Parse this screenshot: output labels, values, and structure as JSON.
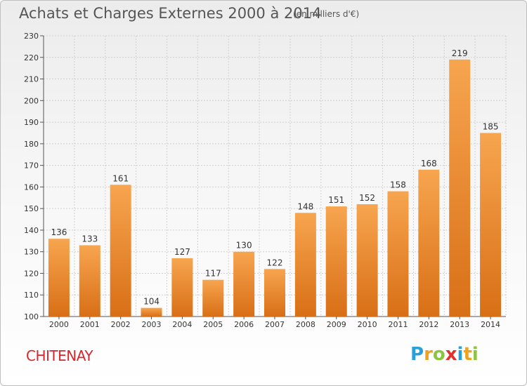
{
  "header": {
    "title": "Achats et Charges Externes 2000 à 2014",
    "subtitle": "(en milliers d'€)"
  },
  "footer": {
    "commune": "CHITENAY",
    "logo_letters": [
      {
        "ch": "P",
        "color": "#2a9fd8"
      },
      {
        "ch": "r",
        "color": "#f0a21f"
      },
      {
        "ch": "o",
        "color": "#8bc53f"
      },
      {
        "ch": "x",
        "color": "#e52f2b"
      },
      {
        "ch": "i",
        "color": "#2a9fd8"
      },
      {
        "ch": "t",
        "color": "#f0a21f"
      },
      {
        "ch": "i",
        "color": "#8bc53f"
      }
    ]
  },
  "colors": {
    "bar_top": "#f7a54f",
    "bar_bottom": "#d86f16",
    "grid": "#d0d0d0"
  },
  "chart_data": {
    "type": "bar",
    "title": "Achats et Charges Externes 2000 à 2014",
    "subtitle": "(en milliers d'€)",
    "xlabel": "",
    "ylabel": "",
    "categories": [
      "2000",
      "2001",
      "2002",
      "2003",
      "2004",
      "2005",
      "2006",
      "2007",
      "2008",
      "2009",
      "2010",
      "2011",
      "2012",
      "2013",
      "2014"
    ],
    "values": [
      136,
      133,
      161,
      104,
      127,
      117,
      130,
      122,
      148,
      151,
      152,
      158,
      168,
      219,
      185
    ],
    "ylim": [
      100,
      230
    ],
    "yticks": [
      100,
      110,
      120,
      130,
      140,
      150,
      160,
      170,
      180,
      190,
      200,
      210,
      220,
      230
    ],
    "grid": true,
    "legend": "none"
  }
}
